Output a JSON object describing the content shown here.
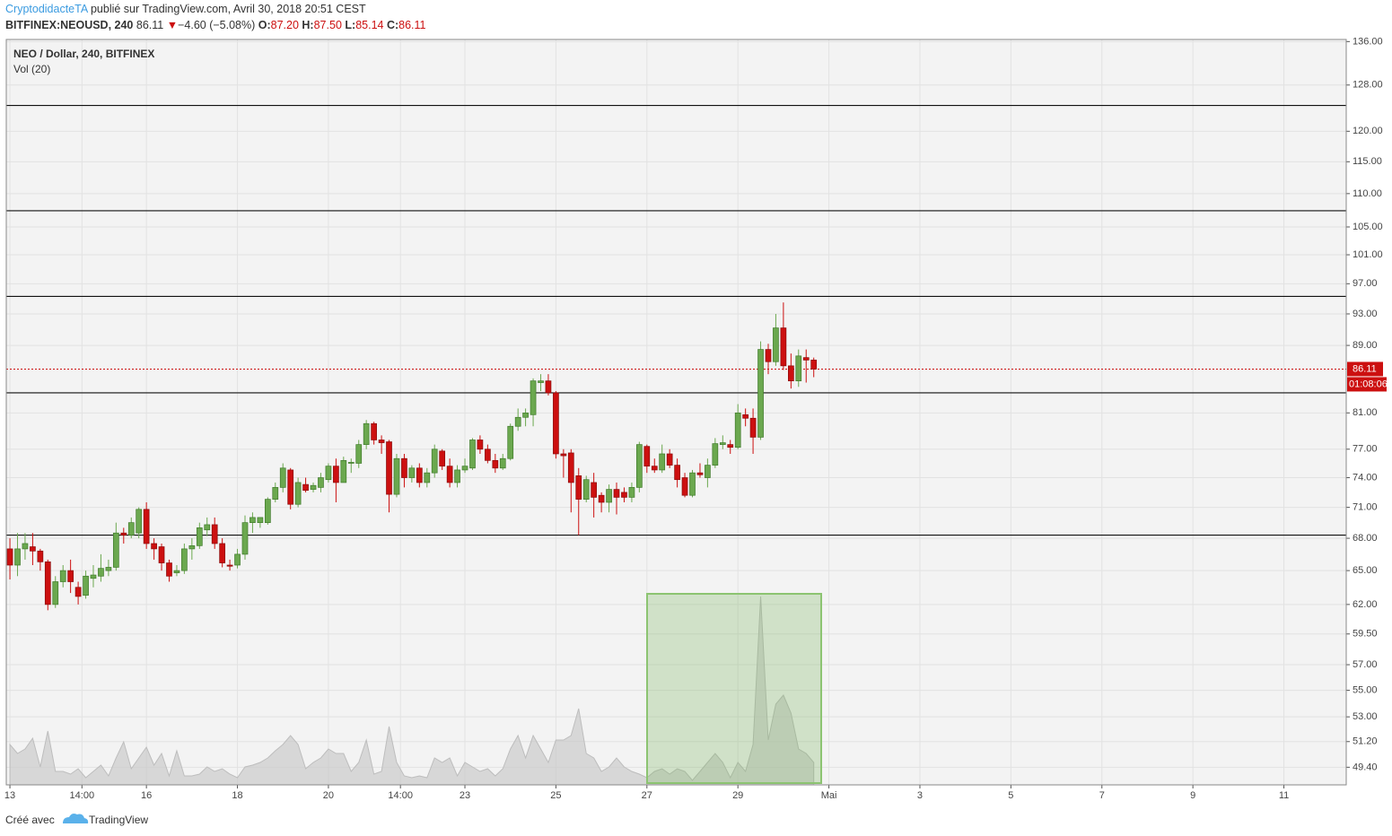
{
  "header": {
    "author": "CryptodidacteTA",
    "published": "publié sur TradingView.com, Avril 30, 2018 20:51 CEST",
    "symbol": "BITFINEX:NEOUSD, 240",
    "price": "86.11",
    "arrow": "▼",
    "change": "−4.60 (−5.08%)",
    "o_label": "O:",
    "o": "87.20",
    "h_label": "H:",
    "h": "87.50",
    "l_label": "L:",
    "l": "85.14",
    "c_label": "C:",
    "c": "86.11"
  },
  "footer": {
    "created": "Créé avec",
    "brand": "TradingView"
  },
  "chart_data": {
    "type": "candlestick",
    "title": "NEO / Dollar, 240, BITFINEX",
    "x": [
      13,
      13.167,
      13.333,
      13.5,
      13.667,
      13.833,
      14,
      14.167,
      14.333,
      14.5,
      14.667,
      14.833,
      15,
      15.167,
      15.333,
      15.5,
      15.667,
      15.833,
      16,
      16.167,
      16.333,
      16.5,
      16.667,
      16.833,
      17,
      17.167,
      17.333,
      17.5,
      17.667,
      17.833,
      18,
      18.167,
      18.333,
      18.5,
      18.667,
      18.833,
      19,
      19.167,
      19.333,
      19.5,
      19.667,
      19.833,
      20,
      20.167,
      20.333,
      20.5,
      20.667,
      20.833,
      21,
      21.167,
      21.333,
      21.5,
      21.667,
      21.833,
      22,
      22.167,
      22.333,
      22.5,
      22.667,
      22.833,
      23,
      23.167,
      23.333,
      23.5,
      23.667,
      23.833,
      24,
      24.167,
      24.333,
      24.5,
      24.667,
      24.833,
      25,
      25.167,
      25.333,
      25.5,
      25.667,
      25.833,
      26,
      26.167,
      26.333,
      26.5,
      26.667,
      26.833,
      27,
      27.167,
      27.333,
      27.5,
      27.667,
      27.833,
      28,
      28.167,
      28.333,
      28.5,
      28.667,
      28.833,
      29,
      29.167,
      29.333,
      29.5,
      29.667,
      29.833,
      30,
      30.167,
      30.333,
      30.5,
      30.667
    ],
    "open": [
      67.0,
      65.5,
      67.0,
      67.2,
      66.8,
      65.8,
      62.0,
      64.0,
      65.0,
      63.5,
      62.8,
      64.3,
      64.5,
      65.0,
      65.3,
      68.5,
      68.3,
      68.5,
      70.8,
      67.5,
      67.2,
      65.7,
      64.8,
      65.0,
      67.0,
      67.3,
      68.8,
      69.3,
      67.5,
      65.5,
      65.5,
      66.5,
      69.5,
      69.5,
      69.5,
      71.8,
      73.0,
      74.8,
      71.3,
      73.3,
      72.8,
      73.0,
      73.8,
      75.2,
      73.5,
      75.5,
      75.5,
      77.5,
      79.8,
      78.0,
      77.8,
      72.3,
      76.0,
      74.0,
      75.0,
      73.5,
      74.5,
      76.8,
      75.2,
      73.5,
      74.8,
      75.0,
      78.0,
      77.0,
      75.8,
      75.0,
      76.0,
      79.5,
      80.5,
      80.8,
      84.5,
      84.7,
      83.3,
      76.5,
      76.6,
      74.2,
      71.8,
      73.5,
      72.2,
      71.5,
      72.8,
      72.5,
      72.0,
      73.0,
      77.3,
      75.2,
      74.8,
      76.5,
      75.3,
      74.0,
      72.2,
      74.5,
      74.0,
      75.3,
      77.5,
      77.5,
      77.2,
      80.8,
      80.4,
      78.3,
      88.5,
      87.0,
      91.2,
      86.5,
      84.7,
      87.5,
      87.2
    ],
    "high": [
      68.0,
      68.5,
      68.5,
      68.5,
      67.0,
      66.0,
      64.5,
      65.5,
      66.0,
      64.0,
      65.0,
      65.5,
      66.5,
      66.0,
      69.5,
      69.0,
      70.0,
      71.0,
      71.5,
      68.0,
      67.5,
      66.0,
      65.5,
      67.5,
      68.0,
      69.5,
      70.0,
      70.0,
      68.0,
      66.0,
      67.0,
      70.2,
      70.5,
      70.0,
      72.0,
      73.5,
      75.5,
      75.0,
      74.0,
      74.0,
      73.5,
      74.5,
      75.5,
      76.0,
      76.2,
      76.0,
      78.0,
      80.2,
      80.0,
      78.5,
      78.0,
      76.5,
      76.5,
      75.3,
      75.5,
      75.0,
      77.5,
      77.0,
      76.0,
      75.3,
      76.0,
      78.2,
      78.5,
      77.5,
      76.5,
      76.5,
      79.8,
      81.5,
      81.5,
      85.0,
      85.5,
      85.5,
      83.5,
      77.0,
      77.0,
      75.0,
      74.2,
      74.5,
      72.5,
      73.3,
      73.5,
      73.0,
      73.5,
      77.8,
      77.5,
      76.0,
      77.5,
      77.0,
      76.0,
      74.5,
      74.8,
      75.5,
      76.0,
      78.2,
      78.5,
      78.0,
      82.0,
      81.5,
      81.5,
      89.5,
      89.2,
      93.0,
      94.5,
      88.0,
      88.5,
      88.5,
      87.5
    ],
    "low": [
      64.2,
      64.5,
      66.0,
      65.5,
      65.0,
      61.5,
      61.7,
      63.5,
      63.0,
      62.0,
      62.5,
      63.5,
      64.0,
      64.5,
      65.0,
      67.5,
      68.0,
      68.0,
      67.0,
      66.0,
      65.0,
      64.0,
      64.5,
      64.7,
      66.0,
      67.0,
      68.2,
      67.0,
      65.3,
      65.0,
      65.2,
      66.0,
      68.5,
      69.0,
      69.3,
      71.5,
      72.5,
      70.8,
      71.0,
      72.5,
      72.5,
      72.5,
      73.5,
      71.5,
      73.5,
      74.5,
      75.0,
      77.0,
      77.5,
      76.5,
      70.5,
      72.0,
      73.0,
      73.5,
      73.0,
      73.0,
      74.0,
      74.8,
      73.0,
      73.0,
      74.5,
      74.8,
      76.5,
      75.5,
      74.5,
      74.8,
      75.8,
      79.0,
      79.5,
      79.5,
      83.5,
      83.0,
      76.0,
      74.0,
      70.5,
      68.3,
      71.5,
      70.0,
      70.5,
      70.5,
      70.3,
      71.5,
      71.5,
      72.5,
      74.5,
      74.5,
      74.5,
      75.0,
      73.0,
      72.0,
      72.0,
      74.0,
      73.0,
      75.0,
      77.0,
      76.5,
      77.0,
      79.5,
      76.5,
      78.0,
      85.5,
      86.5,
      86.0,
      83.8,
      84.0,
      84.5,
      85.14
    ],
    "close": [
      65.5,
      67.0,
      67.5,
      66.8,
      65.8,
      62.0,
      64.0,
      65.0,
      64.0,
      62.7,
      64.5,
      64.6,
      65.2,
      65.3,
      68.5,
      68.3,
      69.5,
      70.8,
      67.5,
      67.0,
      65.7,
      64.5,
      65.0,
      67.0,
      67.3,
      69.0,
      69.3,
      67.5,
      65.7,
      65.4,
      66.5,
      69.5,
      70.0,
      70.0,
      71.8,
      73.0,
      75.0,
      71.3,
      73.5,
      72.7,
      73.2,
      74.0,
      75.2,
      73.5,
      75.8,
      75.6,
      77.5,
      79.8,
      78.0,
      77.7,
      72.3,
      76.0,
      74.0,
      75.0,
      73.5,
      74.5,
      77.0,
      75.2,
      73.5,
      74.8,
      75.2,
      78.0,
      77.0,
      75.8,
      75.0,
      76.0,
      79.5,
      80.5,
      81.0,
      84.7,
      84.7,
      83.3,
      76.5,
      76.3,
      73.5,
      71.8,
      73.8,
      72.0,
      71.5,
      72.8,
      72.0,
      72.0,
      73.0,
      77.5,
      75.2,
      74.8,
      76.5,
      75.3,
      73.8,
      72.2,
      74.5,
      74.3,
      75.3,
      77.6,
      77.7,
      77.2,
      81.0,
      80.4,
      78.3,
      88.5,
      87.0,
      91.2,
      86.5,
      84.7,
      87.7,
      87.2,
      86.11
    ],
    "up_color": "#6ba84f",
    "down_color": "#cc1010",
    "volume": {
      "name": "Vol (20)",
      "color": "#c8c8c8",
      "ylim": [
        0,
        250
      ],
      "values": [
        45,
        35,
        40,
        52,
        20,
        60,
        15,
        15,
        12,
        18,
        8,
        15,
        22,
        10,
        30,
        48,
        18,
        30,
        42,
        22,
        35,
        10,
        38,
        10,
        10,
        12,
        20,
        15,
        18,
        12,
        8,
        20,
        22,
        25,
        30,
        38,
        45,
        55,
        45,
        18,
        25,
        30,
        40,
        35,
        35,
        15,
        25,
        50,
        12,
        15,
        65,
        25,
        10,
        8,
        10,
        8,
        30,
        25,
        30,
        10,
        25,
        20,
        15,
        18,
        10,
        18,
        40,
        55,
        30,
        55,
        40,
        25,
        50,
        50,
        55,
        85,
        35,
        30,
        15,
        20,
        30,
        20,
        15,
        12,
        8,
        15,
        18,
        12,
        18,
        15,
        5,
        15,
        25,
        35,
        25,
        8,
        25,
        15,
        45,
        210,
        50,
        90,
        100,
        80,
        40,
        35,
        25
      ]
    },
    "hlines": [
      124.4,
      107.4,
      95.3,
      83.3,
      68.3
    ],
    "countdown": "01:08:06",
    "log": true,
    "grid": true,
    "ylim": [
      48.2,
      136.4
    ],
    "yticks": [
      {
        "value": 136,
        "label": "136.00"
      },
      {
        "value": 128,
        "label": "128.00"
      },
      {
        "value": 120,
        "label": "120.00"
      },
      {
        "value": 115,
        "label": "115.00"
      },
      {
        "value": 110,
        "label": "110.00"
      },
      {
        "value": 105,
        "label": "105.00"
      },
      {
        "value": 101,
        "label": "101.00"
      },
      {
        "value": 97,
        "label": "97.00"
      },
      {
        "value": 93,
        "label": "93.00"
      },
      {
        "value": 89,
        "label": "89.00"
      },
      {
        "value": 81,
        "label": "81.00"
      },
      {
        "value": 77,
        "label": "77.00"
      },
      {
        "value": 74,
        "label": "74.00"
      },
      {
        "value": 71,
        "label": "71.00"
      },
      {
        "value": 68,
        "label": "68.00"
      },
      {
        "value": 65,
        "label": "65.00"
      },
      {
        "value": 62,
        "label": "62.00"
      },
      {
        "value": 59.5,
        "label": "59.50"
      },
      {
        "value": 57,
        "label": "57.00"
      },
      {
        "value": 55,
        "label": "55.00"
      },
      {
        "value": 53,
        "label": "53.00"
      },
      {
        "value": 51.2,
        "label": "51.20"
      },
      {
        "value": 49.4,
        "label": "49.40"
      }
    ],
    "xlim": [
      12.92,
      42.37
    ],
    "xticks": [
      13,
      {
        "value": 14.583,
        "label": "14:00"
      },
      16,
      18,
      20,
      {
        "value": 21.583,
        "label": "14:00"
      },
      23,
      25,
      27,
      29,
      {
        "value": 31,
        "label": "Mai"
      },
      {
        "value": 33,
        "label": "3"
      },
      {
        "value": 35,
        "label": "5"
      },
      {
        "value": 37,
        "label": "7"
      },
      {
        "value": 39,
        "label": "9"
      },
      {
        "value": 41,
        "label": "11"
      }
    ]
  }
}
